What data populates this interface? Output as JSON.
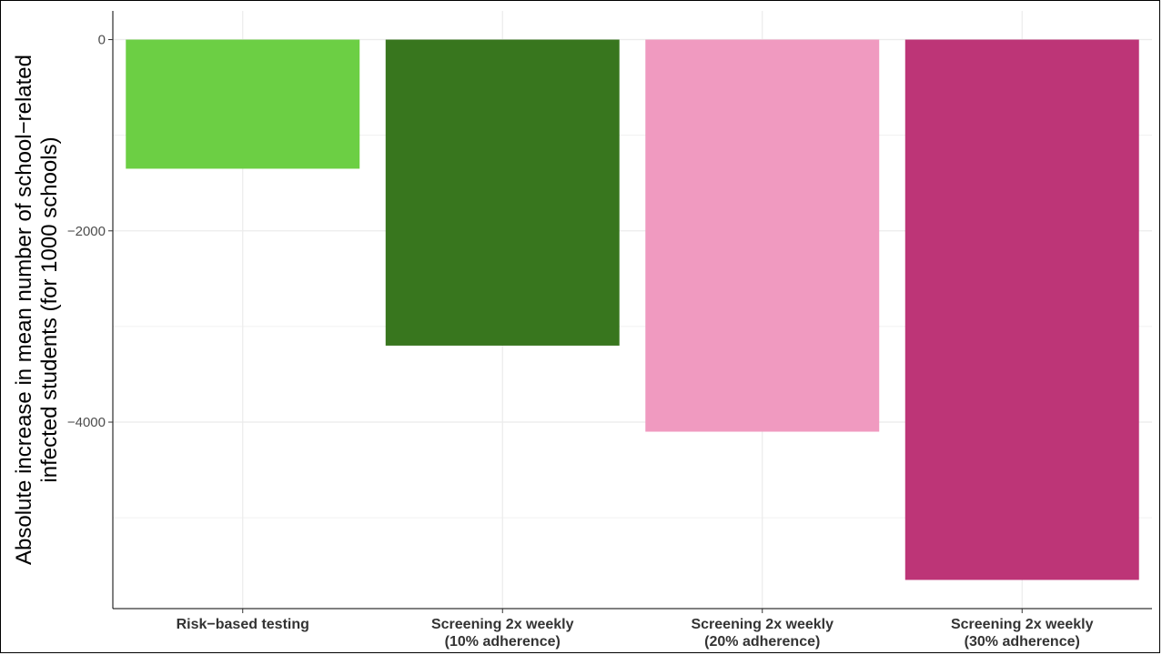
{
  "chart_data": {
    "type": "bar",
    "title": "",
    "xlabel": "",
    "ylabel_lines": [
      "Absolute increase in mean number of school−related",
      "infected students (for 1000 schools)"
    ],
    "categories": [
      [
        "Risk−based testing"
      ],
      [
        "Screening 2x weekly",
        "(10% adherence)"
      ],
      [
        "Screening 2x weekly",
        "(20% adherence)"
      ],
      [
        "Screening 2x weekly",
        "(30% adherence)"
      ]
    ],
    "values": [
      -1350,
      -3200,
      -4100,
      -5650
    ],
    "colors": [
      "#6ccf44",
      "#38761e",
      "#f09aC0",
      "#bd3577"
    ],
    "yticks": [
      0,
      -2000,
      -4000
    ],
    "ytick_labels": [
      "0",
      "−2000",
      "−4000"
    ],
    "ylim": [
      -5950,
      300
    ],
    "grid": true,
    "legend": "none"
  }
}
